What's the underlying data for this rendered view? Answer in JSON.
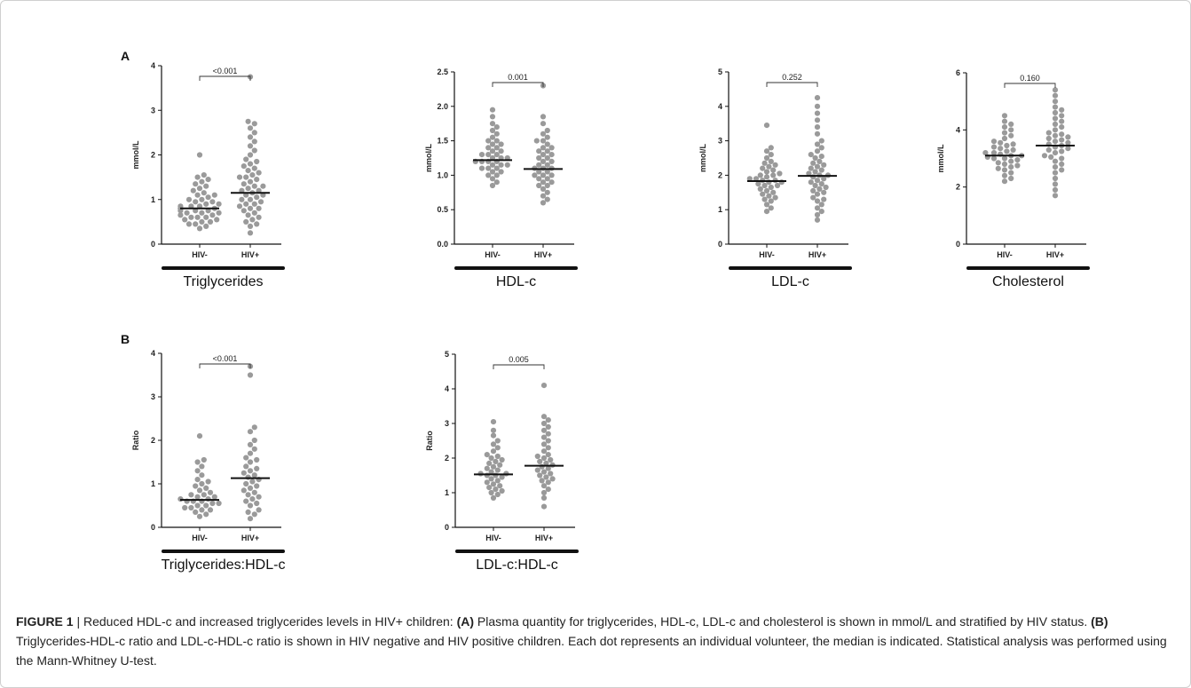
{
  "caption": {
    "label": "FIGURE 1",
    "separator": " | ",
    "part1": "Reduced HDL-c and increased triglycerides levels in HIV+ children: ",
    "tagA": "(A)",
    "part2": " Plasma quantity for triglycerides, HDL-c, LDL-c and cholesterol is shown in mmol/L and stratified by HIV status. ",
    "tagB": "(B)",
    "part3": " Triglycerides-HDL-c ratio and LDL-c-HDL-c ratio is shown in HIV negative and HIV positive children. Each dot represents an individual volunteer, the median is indicated. Statistical analysis was performed using the Mann-Whitney U-test."
  },
  "panel_letters": [
    "A",
    "B"
  ],
  "colors": {
    "dot": "#9a9a9a",
    "median": "#111111",
    "axis": "#111111"
  },
  "chart_data": [
    {
      "type": "scatter",
      "panel": "A",
      "title": "Triglycerides",
      "ylabel": "mmol/L",
      "ylim": [
        0,
        4
      ],
      "yticks": [
        0,
        1,
        2,
        3,
        4
      ],
      "yticklabels": [
        "0",
        "1",
        "2",
        "3",
        "4"
      ],
      "categories": [
        "HIV-",
        "HIV+"
      ],
      "pvalue": "<0.001",
      "medians": [
        0.8,
        1.15
      ],
      "groups": [
        [
          0.35,
          0.4,
          0.45,
          0.45,
          0.5,
          0.5,
          0.55,
          0.55,
          0.6,
          0.6,
          0.6,
          0.65,
          0.65,
          0.7,
          0.7,
          0.7,
          0.75,
          0.75,
          0.75,
          0.8,
          0.8,
          0.8,
          0.85,
          0.85,
          0.85,
          0.9,
          0.9,
          0.95,
          0.95,
          1.0,
          1.0,
          1.05,
          1.1,
          1.1,
          1.15,
          1.2,
          1.25,
          1.3,
          1.35,
          1.4,
          1.45,
          1.5,
          1.55,
          2.0
        ],
        [
          0.25,
          0.4,
          0.45,
          0.5,
          0.55,
          0.6,
          0.65,
          0.7,
          0.75,
          0.8,
          0.8,
          0.85,
          0.9,
          0.9,
          0.95,
          1.0,
          1.0,
          1.05,
          1.1,
          1.1,
          1.15,
          1.2,
          1.2,
          1.25,
          1.3,
          1.3,
          1.35,
          1.4,
          1.45,
          1.5,
          1.5,
          1.55,
          1.6,
          1.65,
          1.7,
          1.75,
          1.8,
          1.85,
          1.9,
          2.0,
          2.1,
          2.2,
          2.3,
          2.4,
          2.5,
          2.6,
          2.7,
          2.75,
          3.75
        ]
      ]
    },
    {
      "type": "scatter",
      "panel": "A",
      "title": "HDL-c",
      "ylabel": "mmol/L",
      "ylim": [
        0,
        2.5
      ],
      "yticks": [
        0,
        0.5,
        1,
        1.5,
        2,
        2.5
      ],
      "yticklabels": [
        "0.0",
        "0.5",
        "1.0",
        "1.5",
        "2.0",
        "2.5"
      ],
      "categories": [
        "HIV-",
        "HIV+"
      ],
      "pvalue": "0.001",
      "medians": [
        1.22,
        1.09
      ],
      "groups": [
        [
          0.85,
          0.9,
          0.95,
          1.0,
          1.0,
          1.05,
          1.05,
          1.1,
          1.1,
          1.1,
          1.15,
          1.15,
          1.15,
          1.2,
          1.2,
          1.2,
          1.2,
          1.25,
          1.25,
          1.25,
          1.3,
          1.3,
          1.3,
          1.35,
          1.35,
          1.4,
          1.4,
          1.45,
          1.45,
          1.5,
          1.5,
          1.55,
          1.6,
          1.65,
          1.7,
          1.75,
          1.85,
          1.95
        ],
        [
          0.6,
          0.65,
          0.7,
          0.75,
          0.8,
          0.85,
          0.85,
          0.9,
          0.9,
          0.95,
          0.95,
          1.0,
          1.0,
          1.0,
          1.05,
          1.05,
          1.1,
          1.1,
          1.1,
          1.15,
          1.15,
          1.2,
          1.2,
          1.25,
          1.25,
          1.3,
          1.3,
          1.35,
          1.35,
          1.4,
          1.4,
          1.45,
          1.5,
          1.5,
          1.55,
          1.6,
          1.65,
          1.75,
          1.85,
          2.3
        ]
      ]
    },
    {
      "type": "scatter",
      "panel": "A",
      "title": "LDL-c",
      "ylabel": "mmol/L",
      "ylim": [
        0,
        5
      ],
      "yticks": [
        0,
        1,
        2,
        3,
        4,
        5
      ],
      "yticklabels": [
        "0",
        "1",
        "2",
        "3",
        "4",
        "5"
      ],
      "categories": [
        "HIV-",
        "HIV+"
      ],
      "pvalue": "0.252",
      "medians": [
        1.83,
        1.98
      ],
      "groups": [
        [
          0.95,
          1.05,
          1.15,
          1.25,
          1.3,
          1.35,
          1.4,
          1.45,
          1.5,
          1.55,
          1.6,
          1.65,
          1.7,
          1.7,
          1.75,
          1.8,
          1.8,
          1.85,
          1.85,
          1.9,
          1.9,
          1.95,
          2.0,
          2.0,
          2.05,
          2.1,
          2.15,
          2.2,
          2.25,
          2.3,
          2.35,
          2.4,
          2.5,
          2.6,
          2.7,
          2.8,
          3.45
        ],
        [
          0.7,
          0.85,
          0.95,
          1.05,
          1.15,
          1.25,
          1.3,
          1.35,
          1.45,
          1.5,
          1.55,
          1.6,
          1.65,
          1.7,
          1.75,
          1.8,
          1.85,
          1.9,
          1.95,
          2.0,
          2.0,
          2.05,
          2.1,
          2.15,
          2.2,
          2.25,
          2.3,
          2.35,
          2.4,
          2.5,
          2.55,
          2.6,
          2.7,
          2.8,
          2.9,
          3.0,
          3.2,
          3.4,
          3.6,
          3.8,
          4.0,
          4.25
        ]
      ]
    },
    {
      "type": "scatter",
      "panel": "A",
      "title": "Cholesterol",
      "ylabel": "mmol/L",
      "ylim": [
        0,
        6
      ],
      "yticks": [
        0,
        2,
        4,
        6
      ],
      "yticklabels": [
        "0",
        "2",
        "4",
        "6"
      ],
      "categories": [
        "HIV-",
        "HIV+"
      ],
      "pvalue": "0.160",
      "medians": [
        3.1,
        3.45
      ],
      "groups": [
        [
          2.2,
          2.3,
          2.4,
          2.5,
          2.6,
          2.65,
          2.7,
          2.75,
          2.8,
          2.85,
          2.9,
          2.95,
          3.0,
          3.0,
          3.05,
          3.1,
          3.1,
          3.15,
          3.2,
          3.2,
          3.25,
          3.3,
          3.35,
          3.4,
          3.45,
          3.5,
          3.55,
          3.6,
          3.7,
          3.8,
          3.9,
          4.0,
          4.1,
          4.2,
          4.3,
          4.5
        ],
        [
          1.7,
          1.9,
          2.1,
          2.3,
          2.5,
          2.6,
          2.7,
          2.8,
          2.9,
          3.0,
          3.05,
          3.1,
          3.2,
          3.25,
          3.3,
          3.35,
          3.4,
          3.45,
          3.5,
          3.55,
          3.6,
          3.65,
          3.7,
          3.75,
          3.8,
          3.85,
          3.9,
          4.0,
          4.1,
          4.2,
          4.3,
          4.4,
          4.5,
          4.6,
          4.7,
          4.8,
          5.0,
          5.2,
          5.4
        ]
      ]
    },
    {
      "type": "scatter",
      "panel": "B",
      "title": "Triglycerides:HDL-c",
      "ylabel": "Ratio",
      "ylim": [
        0,
        4
      ],
      "yticks": [
        0,
        1,
        2,
        3,
        4
      ],
      "yticklabels": [
        "0",
        "1",
        "2",
        "3",
        "4"
      ],
      "categories": [
        "HIV-",
        "HIV+"
      ],
      "pvalue": "<0.001",
      "medians": [
        0.63,
        1.13
      ],
      "groups": [
        [
          0.25,
          0.3,
          0.35,
          0.4,
          0.4,
          0.45,
          0.45,
          0.5,
          0.5,
          0.55,
          0.55,
          0.6,
          0.6,
          0.6,
          0.65,
          0.65,
          0.7,
          0.7,
          0.75,
          0.75,
          0.8,
          0.85,
          0.9,
          0.95,
          1.0,
          1.05,
          1.1,
          1.2,
          1.3,
          1.4,
          1.5,
          1.55,
          2.1
        ],
        [
          0.2,
          0.3,
          0.35,
          0.4,
          0.5,
          0.55,
          0.6,
          0.65,
          0.7,
          0.75,
          0.8,
          0.85,
          0.9,
          0.95,
          1.0,
          1.05,
          1.1,
          1.15,
          1.2,
          1.25,
          1.3,
          1.35,
          1.4,
          1.5,
          1.55,
          1.6,
          1.7,
          1.8,
          1.9,
          2.0,
          2.2,
          2.3,
          3.5,
          3.7
        ]
      ]
    },
    {
      "type": "scatter",
      "panel": "B",
      "title": "LDL-c:HDL-c",
      "ylabel": "Ratio",
      "ylim": [
        0,
        5
      ],
      "yticks": [
        0,
        1,
        2,
        3,
        4,
        5
      ],
      "yticklabels": [
        "0",
        "1",
        "2",
        "3",
        "4",
        "5"
      ],
      "categories": [
        "HIV-",
        "HIV+"
      ],
      "pvalue": "0.005",
      "medians": [
        1.53,
        1.78
      ],
      "groups": [
        [
          0.85,
          0.95,
          1.0,
          1.05,
          1.1,
          1.15,
          1.2,
          1.25,
          1.3,
          1.35,
          1.4,
          1.45,
          1.5,
          1.5,
          1.55,
          1.55,
          1.6,
          1.65,
          1.7,
          1.75,
          1.8,
          1.85,
          1.9,
          1.95,
          2.0,
          2.05,
          2.1,
          2.2,
          2.3,
          2.4,
          2.5,
          2.65,
          2.8,
          3.05
        ],
        [
          0.6,
          0.85,
          1.0,
          1.1,
          1.2,
          1.3,
          1.35,
          1.4,
          1.45,
          1.5,
          1.55,
          1.6,
          1.65,
          1.7,
          1.75,
          1.8,
          1.85,
          1.9,
          1.95,
          2.0,
          2.05,
          2.1,
          2.2,
          2.3,
          2.4,
          2.5,
          2.6,
          2.7,
          2.8,
          2.9,
          3.0,
          3.1,
          3.2,
          4.1
        ]
      ]
    }
  ]
}
